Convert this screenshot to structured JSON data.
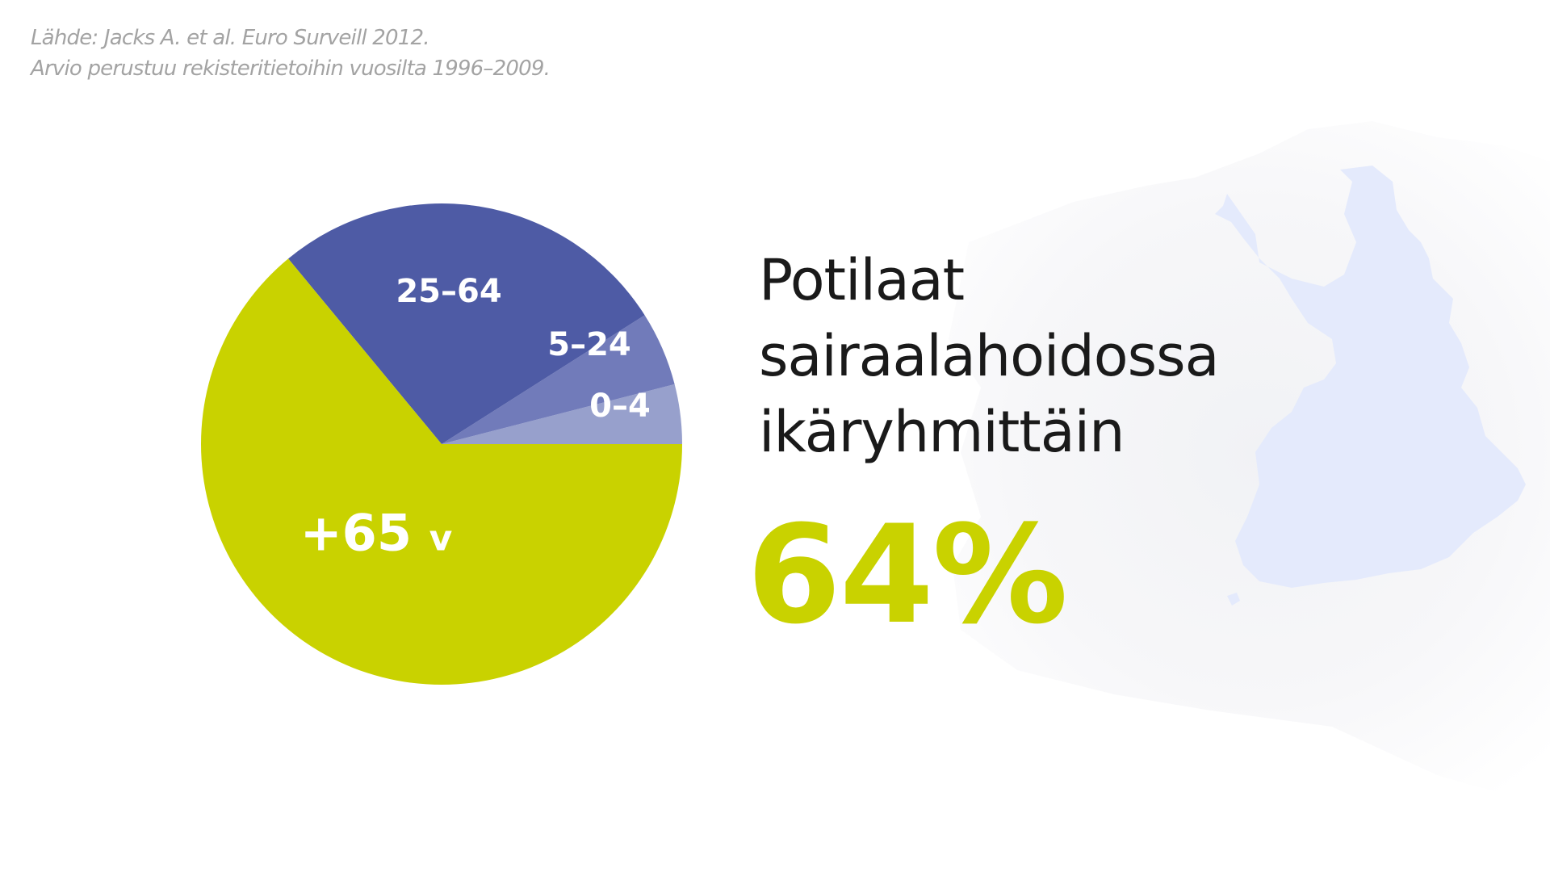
{
  "source_note": {
    "line1": "Lähde: Jacks A. et al. Euro Surveill 2012.",
    "line2": "Arvio perustuu rekisteritietoihin vuosilta 1996–2009."
  },
  "title": {
    "line1": "Potilaat",
    "line2": "sairaalahoidossa",
    "line3": "ikäryhmittäin"
  },
  "highlight": {
    "value": "64%",
    "color": "#c9d200"
  },
  "map": {
    "icon": "finland-map-icon",
    "color": "#e4eafc"
  },
  "chart_data": {
    "type": "pie",
    "start_angle_deg": 0,
    "direction": "counterclockwise",
    "slices": [
      {
        "label": "0–4",
        "value": 4,
        "color": "#97a0cc"
      },
      {
        "label": "5–24",
        "value": 5,
        "color": "#717bba"
      },
      {
        "label": "25–64",
        "value": 27,
        "color": "#4e5ba5"
      },
      {
        "label": "+65 v",
        "value": 64,
        "color": "#c9d200"
      }
    ]
  }
}
